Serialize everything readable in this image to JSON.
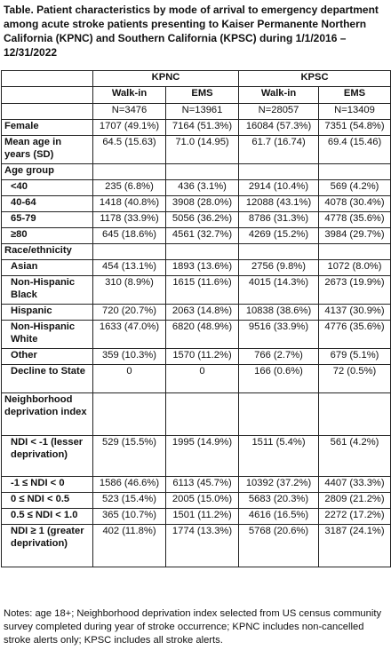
{
  "title": "Table. Patient characteristics by mode of arrival to emergency department among acute stroke patients presenting to Kaiser Permanente Northern California (KPNC) and Southern California (KPSC) during 1/1/2016 – 12/31/2022",
  "header": {
    "groups": [
      "KPNC",
      "KPSC"
    ],
    "columns": [
      "Walk-in",
      "EMS",
      "Walk-in",
      "EMS"
    ],
    "counts": [
      "N=3476",
      "N=13961",
      "N=28057",
      "N=13409"
    ]
  },
  "rows": [
    {
      "label": "Female",
      "cells": [
        "1707 (49.1%)",
        "7164 (51.3%)",
        "16084 (57.3%)",
        "7351 (54.8%)"
      ]
    },
    {
      "label": "Mean age in years (SD)",
      "cells": [
        "64.5 (15.63)",
        "71.0 (14.95)",
        "61.7 (16.74)",
        "69.4 (15.46)"
      ]
    },
    {
      "label": "Age group",
      "cells": [
        "",
        "",
        "",
        ""
      ]
    },
    {
      "label": "<40",
      "cells": [
        "235 (6.8%)",
        "436 (3.1%)",
        "2914 (10.4%)",
        "569 (4.2%)"
      ]
    },
    {
      "label": "40-64",
      "cells": [
        "1418 (40.8%)",
        "3908 (28.0%)",
        "12088 (43.1%)",
        "4078 (30.4%)"
      ]
    },
    {
      "label": "65-79",
      "cells": [
        "1178 (33.9%)",
        "5056 (36.2%)",
        "8786 (31.3%)",
        "4778 (35.6%)"
      ]
    },
    {
      "label": "≥80",
      "cells": [
        "645 (18.6%)",
        "4561 (32.7%)",
        "4269 (15.2%)",
        "3984 (29.7%)"
      ]
    },
    {
      "label": "Race/ethnicity",
      "cells": [
        "",
        "",
        "",
        ""
      ]
    },
    {
      "label": "Asian",
      "cells": [
        "454 (13.1%)",
        "1893 (13.6%)",
        "2756 (9.8%)",
        "1072 (8.0%)"
      ]
    },
    {
      "label": "Non-Hispanic Black",
      "cells": [
        "310 (8.9%)",
        "1615 (11.6%)",
        "4015 (14.3%)",
        "2673 (19.9%)"
      ]
    },
    {
      "label": "Hispanic",
      "cells": [
        "720 (20.7%)",
        "2063 (14.8%)",
        "10838 (38.6%)",
        "4137 (30.9%)"
      ]
    },
    {
      "label": "Non-Hispanic White",
      "cells": [
        "1633 (47.0%)",
        "6820 (48.9%)",
        "9516 (33.9%)",
        "4776 (35.6%)"
      ]
    },
    {
      "label": "Other",
      "cells": [
        "359 (10.3%)",
        "1570 (11.2%)",
        "766 (2.7%)",
        "679 (5.1%)"
      ]
    },
    {
      "label": "Decline to State",
      "cells": [
        "0",
        "0",
        "166 (0.6%)",
        "72 (0.5%)"
      ]
    },
    {
      "label": "Neighborhood deprivation index",
      "cells": [
        "",
        "",
        "",
        ""
      ]
    },
    {
      "label": "NDI < -1 (lesser deprivation)",
      "cells": [
        "529 (15.5%)",
        "1995 (14.9%)",
        "1511 (5.4%)",
        "561 (4.2%)"
      ]
    },
    {
      "label": "-1 ≤ NDI < 0",
      "cells": [
        "1586 (46.6%)",
        "6113 (45.7%)",
        "10392 (37.2%)",
        "4407 (33.3%)"
      ]
    },
    {
      "label": "0 ≤ NDI < 0.5",
      "cells": [
        "523 (15.4%)",
        "2005 (15.0%)",
        "5683 (20.3%)",
        "2809 (21.2%)"
      ]
    },
    {
      "label": "0.5 ≤ NDI < 1.0",
      "cells": [
        "365 (10.7%)",
        "1501 (11.2%)",
        "4616 (16.5%)",
        "2272 (17.2%)"
      ]
    },
    {
      "label": "NDI ≥ 1 (greater deprivation)",
      "cells": [
        "402 (11.8%)",
        "1774 (13.3%)",
        "5768 (20.6%)",
        "3187 (24.1%)"
      ]
    }
  ],
  "notes": "Notes: age 18+; Neighborhood deprivation index selected from US census community survey completed during year of stroke occurrence; KPNC includes non-cancelled stroke alerts only; KPSC includes all stroke alerts."
}
